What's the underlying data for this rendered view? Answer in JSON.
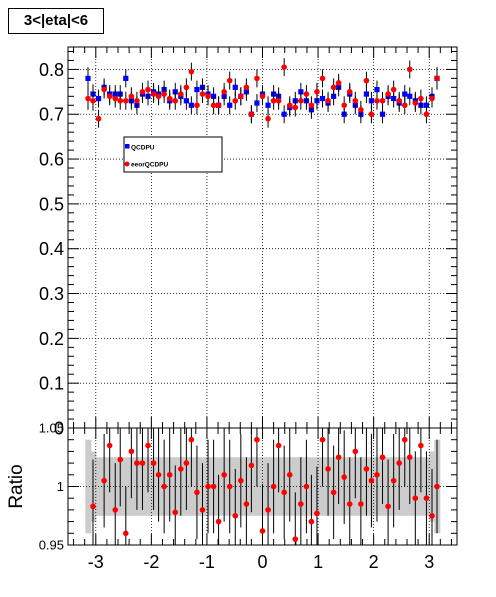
{
  "title": "3<|eta|<6",
  "chart_data": [
    {
      "type": "scatter",
      "panel": "top",
      "xlim": [
        -3.5,
        3.5
      ],
      "ylim": [
        0,
        0.85
      ],
      "grid": true,
      "legend_position": "upper-left",
      "x_ticks": [
        "-3",
        "-2",
        "-1",
        "0",
        "1",
        "2",
        "3"
      ],
      "y_ticks": [
        "0",
        "0.1",
        "0.2",
        "0.3",
        "0.4",
        "0.5",
        "0.6",
        "0.7",
        "0.8"
      ],
      "x": [
        -3.14,
        -3.05,
        -2.95,
        -2.85,
        -2.75,
        -2.65,
        -2.56,
        -2.46,
        -2.36,
        -2.26,
        -2.16,
        -2.06,
        -1.96,
        -1.87,
        -1.77,
        -1.67,
        -1.57,
        -1.47,
        -1.37,
        -1.28,
        -1.18,
        -1.08,
        -0.98,
        -0.88,
        -0.79,
        -0.69,
        -0.59,
        -0.49,
        -0.39,
        -0.29,
        -0.2,
        -0.1,
        0.0,
        0.1,
        0.2,
        0.29,
        0.39,
        0.49,
        0.59,
        0.69,
        0.79,
        0.88,
        0.98,
        1.08,
        1.18,
        1.28,
        1.37,
        1.47,
        1.57,
        1.67,
        1.77,
        1.87,
        1.96,
        2.06,
        2.16,
        2.26,
        2.36,
        2.46,
        2.56,
        2.65,
        2.75,
        2.85,
        2.95,
        3.05,
        3.14
      ],
      "series": [
        {
          "name": "QCDPU",
          "color": "#0000ff",
          "marker": "square",
          "y": [
            0.78,
            0.745,
            0.735,
            0.76,
            0.745,
            0.745,
            0.745,
            0.78,
            0.73,
            0.72,
            0.745,
            0.74,
            0.75,
            0.745,
            0.755,
            0.73,
            0.75,
            0.74,
            0.73,
            0.72,
            0.755,
            0.76,
            0.745,
            0.74,
            0.72,
            0.74,
            0.72,
            0.76,
            0.74,
            0.75,
            0.7,
            0.725,
            0.745,
            0.72,
            0.745,
            0.74,
            0.7,
            0.715,
            0.73,
            0.75,
            0.73,
            0.71,
            0.73,
            0.735,
            0.725,
            0.74,
            0.76,
            0.7,
            0.745,
            0.72,
            0.7,
            0.745,
            0.73,
            0.755,
            0.7,
            0.74,
            0.735,
            0.725,
            0.745,
            0.74,
            0.73,
            0.72,
            0.72,
            0.74,
            0.78
          ],
          "yerr": [
            0.025,
            0.022,
            0.02,
            0.02,
            0.02,
            0.02,
            0.02,
            0.02,
            0.02,
            0.02,
            0.02,
            0.02,
            0.02,
            0.02,
            0.02,
            0.02,
            0.02,
            0.02,
            0.02,
            0.02,
            0.02,
            0.02,
            0.02,
            0.02,
            0.02,
            0.02,
            0.02,
            0.02,
            0.02,
            0.02,
            0.02,
            0.02,
            0.02,
            0.02,
            0.02,
            0.02,
            0.02,
            0.02,
            0.02,
            0.02,
            0.02,
            0.02,
            0.02,
            0.02,
            0.02,
            0.02,
            0.02,
            0.02,
            0.02,
            0.02,
            0.02,
            0.02,
            0.02,
            0.02,
            0.02,
            0.02,
            0.02,
            0.02,
            0.02,
            0.02,
            0.02,
            0.02,
            0.02,
            0.02,
            0.025
          ]
        },
        {
          "name": "eeorQCDPU",
          "color": "#ff0000",
          "marker": "circle",
          "y": [
            0.735,
            0.73,
            0.69,
            0.755,
            0.74,
            0.735,
            0.73,
            0.73,
            0.74,
            0.73,
            0.75,
            0.755,
            0.745,
            0.74,
            0.745,
            0.735,
            0.73,
            0.745,
            0.76,
            0.795,
            0.72,
            0.745,
            0.74,
            0.72,
            0.72,
            0.75,
            0.775,
            0.73,
            0.74,
            0.76,
            0.7,
            0.78,
            0.74,
            0.69,
            0.73,
            0.73,
            0.805,
            0.72,
            0.715,
            0.73,
            0.745,
            0.72,
            0.75,
            0.78,
            0.73,
            0.76,
            0.77,
            0.72,
            0.75,
            0.73,
            0.71,
            0.775,
            0.7,
            0.73,
            0.73,
            0.745,
            0.755,
            0.73,
            0.72,
            0.8,
            0.725,
            0.735,
            0.7,
            0.735,
            0.78
          ],
          "yerr": [
            0.025,
            0.022,
            0.02,
            0.02,
            0.02,
            0.02,
            0.02,
            0.02,
            0.02,
            0.02,
            0.02,
            0.02,
            0.02,
            0.02,
            0.02,
            0.02,
            0.02,
            0.02,
            0.02,
            0.02,
            0.02,
            0.02,
            0.02,
            0.02,
            0.02,
            0.02,
            0.02,
            0.02,
            0.02,
            0.02,
            0.02,
            0.02,
            0.02,
            0.02,
            0.02,
            0.02,
            0.02,
            0.02,
            0.02,
            0.02,
            0.02,
            0.02,
            0.02,
            0.02,
            0.02,
            0.02,
            0.02,
            0.02,
            0.02,
            0.02,
            0.02,
            0.02,
            0.02,
            0.02,
            0.02,
            0.02,
            0.02,
            0.02,
            0.02,
            0.02,
            0.02,
            0.02,
            0.02,
            0.02,
            0.025
          ]
        }
      ]
    },
    {
      "type": "scatter",
      "panel": "ratio",
      "ylabel": "Ratio",
      "xlim": [
        -3.5,
        3.5
      ],
      "ylim": [
        0.95,
        1.05
      ],
      "grid": true,
      "x_ticks": [
        "-3",
        "-2",
        "-1",
        "0",
        "1",
        "2",
        "3"
      ],
      "y_ticks": [
        "0.95",
        "1",
        "1.05"
      ],
      "band": {
        "color": "#cccccc",
        "x": [
          -3.14,
          -3.05,
          -2.95,
          -2.85,
          -2.75,
          -2.65,
          -2.56,
          -2.46,
          -2.36,
          -2.26,
          -2.16,
          -2.06,
          -1.96,
          -1.87,
          -1.77,
          -1.67,
          -1.57,
          -1.47,
          -1.37,
          -1.28,
          -1.18,
          -1.08,
          -0.98,
          -0.88,
          -0.79,
          -0.69,
          -0.59,
          -0.49,
          -0.39,
          -0.29,
          -0.2,
          -0.1,
          0.0,
          0.1,
          0.2,
          0.29,
          0.39,
          0.49,
          0.59,
          0.69,
          0.79,
          0.88,
          0.98,
          1.08,
          1.18,
          1.28,
          1.37,
          1.47,
          1.57,
          1.67,
          1.77,
          1.87,
          1.96,
          2.06,
          2.16,
          2.26,
          2.36,
          2.46,
          2.56,
          2.65,
          2.75,
          2.85,
          2.95,
          3.05,
          3.14
        ],
        "half_width": [
          0.04,
          0.03,
          0.025,
          0.025,
          0.025,
          0.025,
          0.025,
          0.025,
          0.025,
          0.025,
          0.025,
          0.025,
          0.025,
          0.025,
          0.025,
          0.025,
          0.025,
          0.025,
          0.025,
          0.025,
          0.025,
          0.025,
          0.025,
          0.025,
          0.025,
          0.025,
          0.025,
          0.025,
          0.025,
          0.025,
          0.025,
          0.025,
          0.025,
          0.025,
          0.025,
          0.025,
          0.025,
          0.025,
          0.025,
          0.025,
          0.025,
          0.025,
          0.025,
          0.025,
          0.025,
          0.025,
          0.025,
          0.025,
          0.025,
          0.025,
          0.025,
          0.025,
          0.025,
          0.025,
          0.025,
          0.025,
          0.025,
          0.025,
          0.025,
          0.025,
          0.025,
          0.025,
          0.025,
          0.03,
          0.04
        ]
      },
      "series": [
        {
          "name": "",
          "color": "#ff0000",
          "marker": "circle",
          "x": [
            -3.05,
            -2.85,
            -2.75,
            -2.65,
            -2.56,
            -2.46,
            -2.36,
            -2.26,
            -2.16,
            -2.06,
            -1.96,
            -1.87,
            -1.77,
            -1.67,
            -1.57,
            -1.47,
            -1.37,
            -1.28,
            -1.18,
            -1.08,
            -0.98,
            -0.88,
            -0.79,
            -0.69,
            -0.59,
            -0.49,
            -0.39,
            -0.29,
            -0.2,
            -0.1,
            0.0,
            0.1,
            0.2,
            0.29,
            0.39,
            0.49,
            0.59,
            0.69,
            0.79,
            0.88,
            0.98,
            1.08,
            1.18,
            1.28,
            1.37,
            1.47,
            1.57,
            1.67,
            1.77,
            1.87,
            1.96,
            2.06,
            2.16,
            2.26,
            2.36,
            2.46,
            2.56,
            2.65,
            2.75,
            2.85,
            2.95,
            3.05,
            3.14
          ],
          "y": [
            0.983,
            1.005,
            1.035,
            0.98,
            1.023,
            0.96,
            1.03,
            1.02,
            1.02,
            1.035,
            1.02,
            1.01,
            1.0,
            1.01,
            0.978,
            1.015,
            1.02,
            1.04,
            0.995,
            0.98,
            1.0,
            1.0,
            0.97,
            1.01,
            1.0,
            0.975,
            1.005,
            0.985,
            1.018,
            1.04,
            0.962,
            0.98,
            1.0,
            1.035,
            0.995,
            1.01,
            0.955,
            0.985,
            1.0,
            0.97,
            0.977,
            1.04,
            1.015,
            0.995,
            1.025,
            1.008,
            0.985,
            1.03,
            0.985,
            1.015,
            1.005,
            1.01,
            1.025,
            0.983,
            1.005,
            1.02,
            1.04,
            1.025,
            0.99,
            1.035,
            0.99,
            0.975,
            1.0
          ],
          "yerr": [
            0.04,
            0.04,
            0.04,
            0.04,
            0.04,
            0.04,
            0.04,
            0.04,
            0.04,
            0.04,
            0.04,
            0.04,
            0.04,
            0.04,
            0.04,
            0.04,
            0.04,
            0.04,
            0.04,
            0.04,
            0.04,
            0.04,
            0.04,
            0.04,
            0.04,
            0.04,
            0.04,
            0.04,
            0.04,
            0.04,
            0.04,
            0.04,
            0.04,
            0.04,
            0.04,
            0.04,
            0.04,
            0.04,
            0.04,
            0.04,
            0.04,
            0.04,
            0.04,
            0.04,
            0.04,
            0.04,
            0.04,
            0.04,
            0.04,
            0.04,
            0.04,
            0.04,
            0.04,
            0.04,
            0.04,
            0.04,
            0.04,
            0.04,
            0.04,
            0.04,
            0.04,
            0.04,
            0.04
          ]
        }
      ]
    }
  ]
}
